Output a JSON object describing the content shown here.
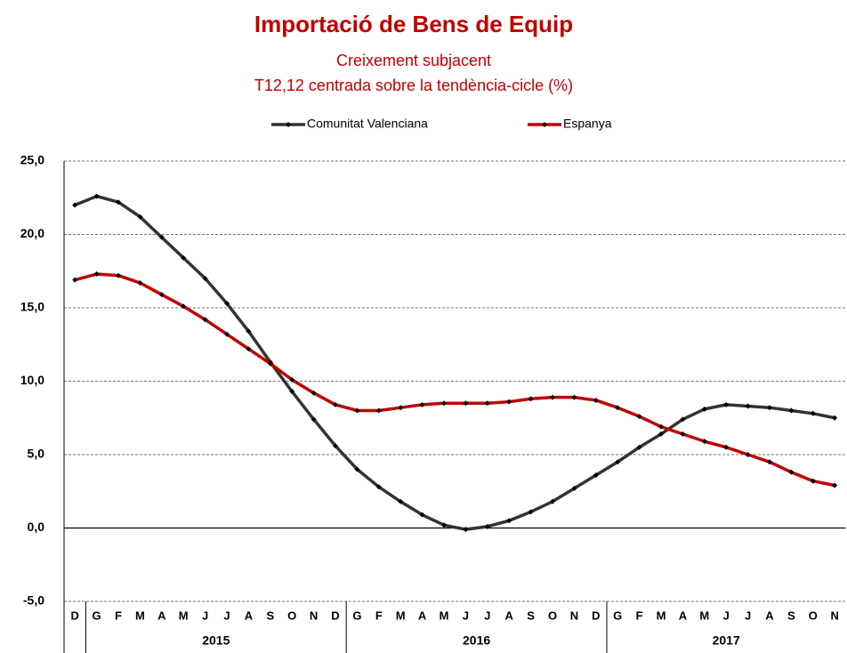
{
  "chart_data": {
    "type": "line",
    "title": "Importació de Bens de Equip",
    "subtitle": "Creixement  subjacent",
    "subtitle2": "T12,12 centrada sobre la tendència-cicle (%)",
    "categories": [
      "D",
      "G",
      "F",
      "M",
      "A",
      "M",
      "J",
      "J",
      "A",
      "S",
      "O",
      "N",
      "D",
      "G",
      "F",
      "M",
      "A",
      "M",
      "J",
      "J",
      "A",
      "S",
      "O",
      "N",
      "D",
      "G",
      "F",
      "M",
      "A",
      "M",
      "J",
      "J",
      "A",
      "S",
      "O",
      "N"
    ],
    "year_labels": [
      "2015",
      "2016",
      "2017"
    ],
    "series": [
      {
        "name": "Comunitat Valenciana",
        "color": "#333333",
        "values": [
          22.0,
          22.6,
          22.2,
          21.2,
          19.8,
          18.4,
          17.0,
          15.3,
          13.4,
          11.3,
          9.3,
          7.4,
          5.6,
          4.0,
          2.8,
          1.8,
          0.9,
          0.2,
          -0.1,
          0.1,
          0.5,
          1.1,
          1.8,
          2.7,
          3.6,
          4.5,
          5.5,
          6.4,
          7.4,
          8.1,
          8.4,
          8.3,
          8.2,
          8.0,
          7.8,
          7.5
        ]
      },
      {
        "name": "Espanya",
        "color": "#c00000",
        "values": [
          16.9,
          17.3,
          17.2,
          16.7,
          15.9,
          15.1,
          14.2,
          13.2,
          12.2,
          11.2,
          10.1,
          9.2,
          8.4,
          8.0,
          8.0,
          8.2,
          8.4,
          8.5,
          8.5,
          8.5,
          8.6,
          8.8,
          8.9,
          8.9,
          8.7,
          8.2,
          7.6,
          6.9,
          6.4,
          5.9,
          5.5,
          5.0,
          4.5,
          3.8,
          3.2,
          2.9
        ]
      }
    ],
    "ylim": [
      -5,
      25
    ],
    "yticks": [
      {
        "value": -5,
        "label": "-5,0"
      },
      {
        "value": 0,
        "label": "0,0"
      },
      {
        "value": 5,
        "label": "5,0"
      },
      {
        "value": 10,
        "label": "10,0"
      },
      {
        "value": 15,
        "label": "15,0"
      },
      {
        "value": 20,
        "label": "20,0"
      },
      {
        "value": 25,
        "label": "25,0"
      }
    ],
    "grid": true,
    "legend": "top"
  }
}
